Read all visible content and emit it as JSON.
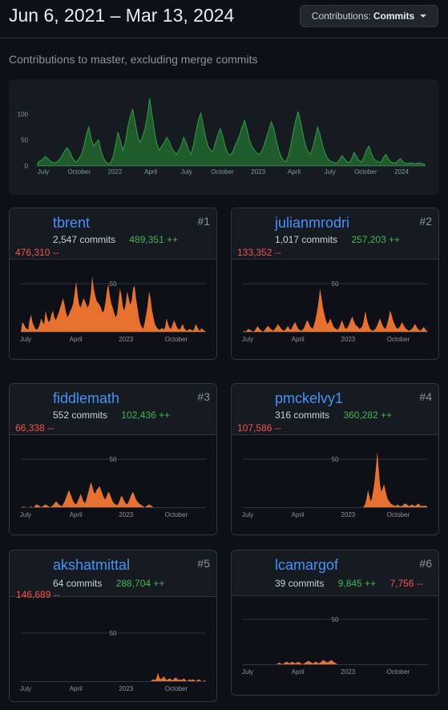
{
  "header": {
    "date_range": "Jun 6, 2021 – Mar 13, 2024",
    "contrib_label": "Contributions:",
    "contrib_value": "Commits"
  },
  "subtitle": "Contributions to master, excluding merge commits",
  "colors": {
    "overview_fill": "#1f5b2b",
    "overview_stroke": "#2ea043",
    "contributor_fill": "#e8712d",
    "link": "#4493f8",
    "additions": "#3fb950",
    "deletions": "#f85149"
  },
  "chart_data": [
    {
      "type": "area",
      "x_labels": [
        "July",
        "October",
        "2022",
        "April",
        "July",
        "October",
        "2023",
        "April",
        "July",
        "October",
        "2024"
      ],
      "y_ticks": [
        0,
        50,
        100
      ],
      "ylim": [
        0,
        130
      ],
      "values": [
        6,
        10,
        12,
        18,
        15,
        10,
        7,
        6,
        8,
        12,
        20,
        28,
        35,
        30,
        18,
        10,
        8,
        14,
        22,
        38,
        60,
        75,
        52,
        38,
        45,
        50,
        30,
        15,
        8,
        4,
        6,
        18,
        40,
        65,
        48,
        30,
        45,
        75,
        95,
        110,
        85,
        60,
        45,
        55,
        70,
        95,
        130,
        98,
        65,
        42,
        30,
        38,
        45,
        55,
        48,
        35,
        28,
        22,
        30,
        40,
        55,
        45,
        30,
        22,
        40,
        65,
        88,
        102,
        78,
        55,
        38,
        30,
        28,
        45,
        60,
        72,
        58,
        38,
        25,
        20,
        26,
        38,
        48,
        60,
        75,
        88,
        70,
        50,
        38,
        30,
        25,
        22,
        28,
        40,
        55,
        70,
        85,
        72,
        50,
        30,
        18,
        10,
        8,
        20,
        40,
        65,
        88,
        105,
        85,
        60,
        40,
        28,
        22,
        35,
        55,
        75,
        60,
        40,
        25,
        15,
        10,
        8,
        6,
        5,
        12,
        20,
        14,
        8,
        6,
        14,
        26,
        18,
        10,
        8,
        16,
        30,
        38,
        25,
        14,
        10,
        8,
        6,
        16,
        22,
        14,
        8,
        6,
        5,
        10,
        14,
        8,
        5,
        4,
        6,
        5,
        4,
        5,
        6,
        4,
        3
      ]
    },
    {
      "user": "tbrent",
      "type": "area",
      "x_labels": [
        "July",
        "April",
        "2023",
        "October"
      ],
      "y_ticks": [
        50
      ],
      "ylim": [
        0,
        65
      ],
      "values": [
        0,
        10,
        8,
        5,
        3,
        2,
        12,
        18,
        10,
        6,
        3,
        2,
        4,
        8,
        14,
        10,
        8,
        22,
        15,
        10,
        12,
        18,
        22,
        15,
        12,
        16,
        20,
        25,
        30,
        35,
        28,
        20,
        15,
        18,
        22,
        25,
        30,
        42,
        52,
        38,
        28,
        25,
        30,
        35,
        32,
        28,
        25,
        30,
        40,
        58,
        45,
        38,
        32,
        30,
        28,
        25,
        20,
        22,
        30,
        42,
        50,
        38,
        30,
        25,
        20,
        15,
        18,
        32,
        45,
        38,
        26,
        22,
        30,
        42,
        35,
        28,
        32,
        45,
        48,
        35,
        25,
        15,
        8,
        5,
        3,
        10,
        18,
        28,
        42,
        35,
        22,
        15,
        8,
        5,
        3,
        2,
        3,
        4,
        2,
        5,
        14,
        8,
        4,
        3,
        7,
        12,
        9,
        5,
        3,
        2,
        5,
        8,
        4,
        2,
        1,
        2,
        3,
        2,
        1,
        3,
        8,
        5,
        2,
        1,
        4,
        2,
        1,
        0
      ]
    },
    {
      "user": "julianmrodri",
      "type": "area",
      "x_labels": [
        "July",
        "April",
        "2023",
        "October"
      ],
      "y_ticks": [
        50
      ],
      "ylim": [
        0,
        65
      ],
      "values": [
        0,
        1,
        0,
        2,
        3,
        2,
        1,
        0,
        1,
        3,
        6,
        4,
        2,
        1,
        0,
        2,
        4,
        6,
        5,
        3,
        2,
        1,
        3,
        5,
        8,
        6,
        4,
        2,
        1,
        2,
        4,
        6,
        3,
        2,
        5,
        8,
        10,
        6,
        3,
        2,
        1,
        2,
        4,
        8,
        12,
        10,
        6,
        4,
        3,
        8,
        14,
        22,
        32,
        45,
        35,
        25,
        18,
        12,
        8,
        10,
        14,
        10,
        6,
        4,
        3,
        2,
        4,
        8,
        12,
        8,
        4,
        3,
        5,
        8,
        12,
        16,
        12,
        8,
        6,
        5,
        3,
        4,
        6,
        12,
        22,
        14,
        8,
        4,
        2,
        1,
        2,
        3,
        6,
        10,
        14,
        10,
        6,
        4,
        3,
        8,
        14,
        22,
        18,
        12,
        8,
        5,
        3,
        4,
        6,
        10,
        8,
        5,
        3,
        2,
        1,
        2,
        3,
        5,
        8,
        6,
        3,
        2,
        1,
        3,
        5,
        3,
        1,
        0
      ]
    },
    {
      "user": "fiddlemath",
      "type": "area",
      "x_labels": [
        "July",
        "April",
        "2023",
        "October"
      ],
      "y_ticks": [
        50
      ],
      "ylim": [
        0,
        65
      ],
      "values": [
        0,
        0,
        1,
        0,
        0,
        0,
        0,
        1,
        0,
        0,
        2,
        3,
        2,
        1,
        0,
        1,
        2,
        3,
        2,
        1,
        0,
        1,
        2,
        4,
        6,
        5,
        3,
        2,
        1,
        3,
        6,
        10,
        14,
        18,
        14,
        10,
        6,
        4,
        3,
        6,
        10,
        14,
        10,
        6,
        4,
        8,
        14,
        20,
        26,
        22,
        16,
        14,
        18,
        20,
        22,
        18,
        14,
        10,
        8,
        12,
        16,
        14,
        10,
        6,
        4,
        3,
        2,
        4,
        8,
        12,
        10,
        6,
        4,
        3,
        6,
        10,
        14,
        16,
        12,
        8,
        6,
        4,
        3,
        2,
        1,
        0,
        1,
        2,
        3,
        2,
        1,
        0,
        0,
        0,
        0,
        0,
        0,
        0,
        0,
        0,
        0,
        0,
        0,
        0,
        0,
        0,
        0,
        0,
        0,
        0,
        0,
        0,
        0,
        0,
        0,
        0,
        0,
        0,
        0,
        0,
        0,
        0,
        0,
        0,
        0,
        0,
        0,
        0
      ]
    },
    {
      "user": "pmckelvy1",
      "type": "area",
      "x_labels": [
        "July",
        "April",
        "2023",
        "October"
      ],
      "y_ticks": [
        50
      ],
      "ylim": [
        0,
        65
      ],
      "values": [
        0,
        0,
        0,
        0,
        0,
        0,
        0,
        0,
        0,
        0,
        0,
        0,
        0,
        0,
        0,
        0,
        0,
        0,
        0,
        0,
        0,
        0,
        0,
        0,
        0,
        0,
        0,
        0,
        0,
        0,
        0,
        0,
        0,
        0,
        0,
        0,
        0,
        0,
        0,
        0,
        0,
        0,
        0,
        0,
        0,
        0,
        0,
        0,
        0,
        0,
        0,
        0,
        0,
        0,
        0,
        0,
        0,
        0,
        0,
        0,
        0,
        0,
        0,
        0,
        0,
        0,
        0,
        0,
        0,
        0,
        0,
        0,
        0,
        0,
        0,
        0,
        0,
        0,
        0,
        0,
        0,
        0,
        0,
        0,
        0,
        0,
        0,
        0,
        0,
        0,
        0,
        1,
        4,
        10,
        18,
        12,
        6,
        10,
        18,
        28,
        42,
        58,
        40,
        24,
        16,
        20,
        24,
        18,
        12,
        8,
        6,
        4,
        3,
        2,
        2,
        1,
        3,
        2,
        1,
        1,
        2,
        3,
        4,
        3,
        2,
        1,
        2,
        3,
        2,
        1,
        2,
        3,
        4,
        2,
        1,
        2,
        1,
        2,
        1,
        0
      ]
    },
    {
      "user": "akshatmittal",
      "type": "area",
      "x_labels": [
        "July",
        "April",
        "2023",
        "October"
      ],
      "y_ticks": [
        50
      ],
      "ylim": [
        0,
        65
      ],
      "values": [
        0,
        0,
        0,
        0,
        0,
        0,
        0,
        0,
        0,
        0,
        0,
        0,
        0,
        0,
        0,
        0,
        0,
        0,
        0,
        0,
        0,
        0,
        0,
        0,
        0,
        0,
        0,
        0,
        0,
        0,
        0,
        0,
        0,
        0,
        0,
        0,
        0,
        0,
        0,
        0,
        0,
        0,
        0,
        0,
        0,
        0,
        0,
        0,
        0,
        0,
        0,
        0,
        0,
        0,
        0,
        0,
        0,
        0,
        0,
        0,
        0,
        0,
        0,
        0,
        0,
        0,
        0,
        0,
        0,
        0,
        0,
        0,
        0,
        0,
        0,
        0,
        0,
        0,
        0,
        0,
        0,
        0,
        0,
        0,
        0,
        0,
        0,
        0,
        0,
        0,
        1,
        2,
        1,
        3,
        9,
        4,
        2,
        3,
        5,
        3,
        1,
        2,
        3,
        2,
        1,
        2,
        4,
        3,
        1,
        2,
        1,
        2,
        3,
        1,
        0,
        1,
        2,
        1,
        2,
        1,
        0,
        1,
        2,
        1,
        0,
        0,
        1,
        0
      ]
    },
    {
      "user": "lcamargof",
      "type": "area",
      "x_labels": [
        "July",
        "April",
        "2023",
        "October"
      ],
      "y_ticks": [
        50
      ],
      "ylim": [
        0,
        65
      ],
      "values": [
        0,
        0,
        0,
        0,
        0,
        0,
        0,
        0,
        0,
        0,
        0,
        0,
        0,
        0,
        0,
        0,
        0,
        0,
        0,
        0,
        0,
        0,
        0,
        0,
        1,
        2,
        1,
        0,
        1,
        2,
        3,
        2,
        1,
        2,
        3,
        2,
        1,
        2,
        3,
        2,
        1,
        0,
        1,
        2,
        3,
        4,
        3,
        2,
        1,
        2,
        3,
        2,
        1,
        2,
        3,
        5,
        4,
        3,
        2,
        3,
        4,
        5,
        3,
        2,
        1,
        0,
        0,
        0,
        0,
        0,
        0,
        0,
        0,
        0,
        0,
        0,
        0,
        0,
        0,
        0,
        0,
        0,
        0,
        0,
        0,
        0,
        0,
        0,
        0,
        0,
        0,
        0,
        0,
        0,
        0,
        0,
        0,
        0,
        0,
        0,
        0,
        0,
        0,
        0,
        0,
        0,
        0,
        0,
        0,
        0,
        0,
        0,
        0,
        0,
        0,
        0,
        0,
        0,
        0,
        0,
        0,
        0,
        0,
        0,
        0,
        0,
        0,
        0
      ]
    }
  ],
  "contributors": [
    {
      "user": "tbrent",
      "rank": "#1",
      "commits": "2,547 commits",
      "additions": "489,351 ++",
      "deletions": "476,310 --"
    },
    {
      "user": "julianmrodri",
      "rank": "#2",
      "commits": "1,017 commits",
      "additions": "257,203 ++",
      "deletions": "133,352 --"
    },
    {
      "user": "fiddlemath",
      "rank": "#3",
      "commits": "552 commits",
      "additions": "102,436 ++",
      "deletions": "66,338 --"
    },
    {
      "user": "pmckelvy1",
      "rank": "#4",
      "commits": "316 commits",
      "additions": "360,282 ++",
      "deletions": "107,586 --"
    },
    {
      "user": "akshatmittal",
      "rank": "#5",
      "commits": "64 commits",
      "additions": "288,704 ++",
      "deletions": "146,689 --"
    },
    {
      "user": "lcamargof",
      "rank": "#6",
      "commits": "39 commits",
      "additions": "9,845 ++",
      "deletions": "7,756 --"
    }
  ]
}
